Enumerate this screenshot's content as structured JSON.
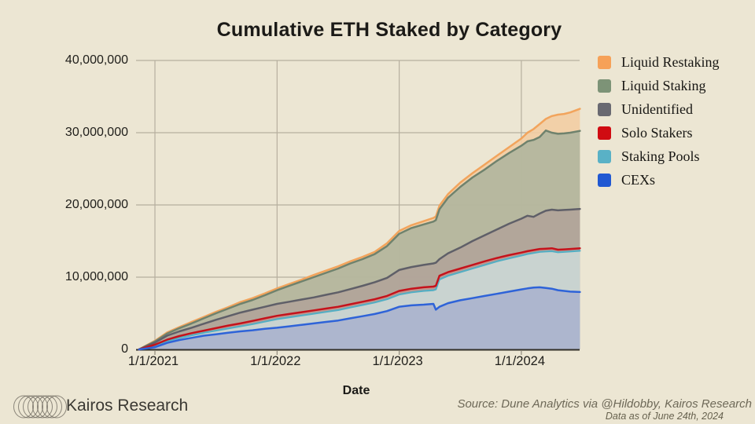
{
  "page": {
    "background": "#ece6d3"
  },
  "title": "Cumulative ETH Staked by Category",
  "footer": {
    "brand": "Kairos Research",
    "logo_icon": "overlapping-rings-logo",
    "source_line": "Source: Dune Analytics via @Hildobby, Kairos Research",
    "data_as_of": "Data as of June 24th, 2024"
  },
  "legend": {
    "position": "right",
    "items": [
      {
        "label": "Liquid Restaking",
        "color": "#f6a158"
      },
      {
        "label": "Liquid Staking",
        "color": "#7d9377"
      },
      {
        "label": "Unidentified",
        "color": "#696971"
      },
      {
        "label": "Solo Stakers",
        "color": "#d00b12"
      },
      {
        "label": "Staking Pools",
        "color": "#59b1c6"
      },
      {
        "label": "CEXs",
        "color": "#2058d2"
      }
    ]
  },
  "chart_data": {
    "type": "area",
    "stacking": "stacked; each series value below is the cumulative top boundary in millions of ETH",
    "title": "Cumulative ETH Staked by Category",
    "xlabel": "Date",
    "ylabel": "",
    "x_unit": "decimal_year",
    "xlim": [
      2020.87,
      2024.48
    ],
    "ylim_millions": [
      0,
      40
    ],
    "grid": true,
    "grid_color": "#b6af9f",
    "axis_color": "#312e27",
    "tick_color": "#8f897b",
    "legend_position": "right",
    "y_ticks": [
      {
        "v": 0,
        "label": "0"
      },
      {
        "v": 10,
        "label": "10,000,000"
      },
      {
        "v": 20,
        "label": "20,000,000"
      },
      {
        "v": 30,
        "label": "30,000,000"
      },
      {
        "v": 40,
        "label": "40,000,000"
      }
    ],
    "x_ticks": [
      {
        "t": 2021,
        "label": "1/1/2021"
      },
      {
        "t": 2022,
        "label": "1/1/2022"
      },
      {
        "t": 2023,
        "label": "1/1/2023"
      },
      {
        "t": 2024,
        "label": "1/1/2024"
      }
    ],
    "x": [
      2020.87,
      2021.0,
      2021.1,
      2021.2,
      2021.3,
      2021.4,
      2021.5,
      2021.6,
      2021.7,
      2021.8,
      2021.9,
      2022.0,
      2022.1,
      2022.2,
      2022.3,
      2022.4,
      2022.5,
      2022.6,
      2022.7,
      2022.8,
      2022.9,
      2023.0,
      2023.1,
      2023.2,
      2023.28,
      2023.3,
      2023.33,
      2023.4,
      2023.5,
      2023.6,
      2023.7,
      2023.8,
      2023.9,
      2024.0,
      2024.05,
      2024.1,
      2024.15,
      2024.2,
      2024.25,
      2024.3,
      2024.35,
      2024.4,
      2024.48
    ],
    "series": [
      {
        "name": "liquid-restaking",
        "label": "Liquid Restaking",
        "line_color": "#f2a45c",
        "fill_color": "#f2cda2",
        "line_width": 2.5,
        "values_millions": [
          0,
          1.2,
          2.35,
          3.1,
          3.8,
          4.5,
          5.2,
          5.85,
          6.55,
          7.1,
          7.75,
          8.45,
          9.05,
          9.65,
          10.3,
          10.9,
          11.5,
          12.2,
          12.8,
          13.5,
          14.7,
          16.4,
          17.2,
          17.75,
          18.2,
          18.4,
          19.9,
          21.5,
          23.1,
          24.4,
          25.6,
          26.8,
          28.0,
          29.2,
          30.0,
          30.5,
          31.2,
          31.9,
          32.3,
          32.5,
          32.6,
          32.8,
          33.3
        ]
      },
      {
        "name": "liquid-staking",
        "label": "Liquid Staking",
        "line_color": "#6f826d",
        "fill_color": "#aeb49d",
        "line_width": 2.5,
        "values_millions": [
          0,
          1.1,
          2.2,
          2.95,
          3.6,
          4.3,
          5.0,
          5.65,
          6.3,
          6.85,
          7.5,
          8.2,
          8.8,
          9.4,
          10.0,
          10.6,
          11.2,
          11.9,
          12.5,
          13.2,
          14.3,
          16.0,
          16.8,
          17.3,
          17.7,
          17.9,
          19.4,
          21.0,
          22.5,
          23.8,
          24.9,
          26.1,
          27.2,
          28.2,
          28.8,
          29.0,
          29.4,
          30.3,
          30.0,
          29.85,
          29.9,
          30.0,
          30.25
        ]
      },
      {
        "name": "unidentified",
        "label": "Unidentified",
        "line_color": "#5f5f68",
        "fill_color": "#b2a39a",
        "line_width": 2.5,
        "values_millions": [
          0,
          0.95,
          1.9,
          2.5,
          3.0,
          3.55,
          4.1,
          4.6,
          5.1,
          5.5,
          5.9,
          6.3,
          6.6,
          6.9,
          7.2,
          7.55,
          7.9,
          8.35,
          8.8,
          9.3,
          9.9,
          11.0,
          11.4,
          11.7,
          11.9,
          12.0,
          12.5,
          13.3,
          14.1,
          15.0,
          15.8,
          16.6,
          17.4,
          18.1,
          18.5,
          18.35,
          18.8,
          19.2,
          19.35,
          19.25,
          19.3,
          19.35,
          19.45
        ]
      },
      {
        "name": "solo-stakers",
        "label": "Solo Stakers",
        "line_color": "#c5121b",
        "fill_color": "#c4938b",
        "line_width": 2.5,
        "values_millions": [
          0,
          0.65,
          1.35,
          1.85,
          2.25,
          2.6,
          2.95,
          3.3,
          3.6,
          3.95,
          4.3,
          4.65,
          4.9,
          5.15,
          5.4,
          5.65,
          5.9,
          6.25,
          6.6,
          6.95,
          7.4,
          8.1,
          8.4,
          8.6,
          8.7,
          8.8,
          10.2,
          10.7,
          11.2,
          11.7,
          12.2,
          12.65,
          13.05,
          13.4,
          13.6,
          13.75,
          13.9,
          13.95,
          14.0,
          13.8,
          13.85,
          13.9,
          14.0
        ]
      },
      {
        "name": "staking-pools",
        "label": "Staking Pools",
        "line_color": "#54aec3",
        "fill_color": "#c9dcd9",
        "line_width": 2.2,
        "values_millions": [
          0,
          0.5,
          1.15,
          1.6,
          1.95,
          2.3,
          2.6,
          2.9,
          3.2,
          3.5,
          3.85,
          4.2,
          4.45,
          4.7,
          4.95,
          5.2,
          5.45,
          5.8,
          6.15,
          6.5,
          6.95,
          7.6,
          7.9,
          8.1,
          8.2,
          8.3,
          9.7,
          10.2,
          10.7,
          11.2,
          11.7,
          12.2,
          12.6,
          13.0,
          13.2,
          13.35,
          13.5,
          13.55,
          13.6,
          13.45,
          13.5,
          13.55,
          13.65
        ]
      },
      {
        "name": "cexs",
        "label": "CEXs",
        "line_color": "#2e63d8",
        "fill_color": "#a9b2cd",
        "line_width": 2.5,
        "values_millions": [
          0,
          0.3,
          0.9,
          1.3,
          1.6,
          1.9,
          2.1,
          2.3,
          2.5,
          2.65,
          2.85,
          3.0,
          3.2,
          3.4,
          3.6,
          3.8,
          4.0,
          4.3,
          4.6,
          4.9,
          5.3,
          5.9,
          6.1,
          6.2,
          6.3,
          5.5,
          5.9,
          6.4,
          6.8,
          7.1,
          7.4,
          7.7,
          8.0,
          8.3,
          8.45,
          8.55,
          8.6,
          8.5,
          8.4,
          8.2,
          8.1,
          8.0,
          7.95
        ]
      }
    ]
  }
}
